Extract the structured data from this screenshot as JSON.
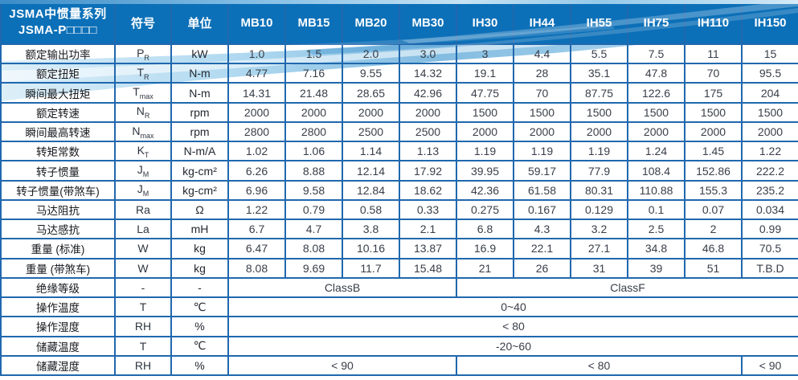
{
  "header": {
    "title_line1": "JSMA中惯量系列",
    "title_line2": "JSMA-P□□□□",
    "symbol_col": "符号",
    "unit_col": "单位",
    "models": [
      "MB10",
      "MB15",
      "MB20",
      "MB30",
      "IH30",
      "IH44",
      "IH55",
      "IH75",
      "IH110",
      "IH150"
    ]
  },
  "rows": [
    {
      "label": "额定输出功率",
      "sym": "P",
      "sub": "R",
      "unit": "kW",
      "values": [
        "1.0",
        "1.5",
        "2.0",
        "3.0",
        "3",
        "4.4",
        "5.5",
        "7.5",
        "11",
        "15"
      ]
    },
    {
      "label": "额定扭矩",
      "sym": "T",
      "sub": "R",
      "unit": "N-m",
      "values": [
        "4.77",
        "7.16",
        "9.55",
        "14.32",
        "19.1",
        "28",
        "35.1",
        "47.8",
        "70",
        "95.5"
      ]
    },
    {
      "label": "瞬间最大扭矩",
      "sym": "T",
      "sub": "max",
      "unit": "N-m",
      "values": [
        "14.31",
        "21.48",
        "28.65",
        "42.96",
        "47.75",
        "70",
        "87.75",
        "122.6",
        "175",
        "204"
      ]
    },
    {
      "label": "额定转速",
      "sym": "N",
      "sub": "R",
      "unit": "rpm",
      "values": [
        "2000",
        "2000",
        "2000",
        "2000",
        "1500",
        "1500",
        "1500",
        "1500",
        "1500",
        "1500"
      ]
    },
    {
      "label": "瞬间最高转速",
      "sym": "N",
      "sub": "max",
      "unit": "rpm",
      "values": [
        "2800",
        "2800",
        "2500",
        "2500",
        "2000",
        "2000",
        "2000",
        "2000",
        "2000",
        "2000"
      ]
    },
    {
      "label": "转矩常数",
      "sym": "K",
      "sub": "T",
      "unit": "N-m/A",
      "values": [
        "1.02",
        "1.06",
        "1.14",
        "1.13",
        "1.19",
        "1.19",
        "1.19",
        "1.24",
        "1.45",
        "1.22"
      ]
    },
    {
      "label": "转子惯量",
      "sym": "J",
      "sub": "M",
      "unit": "kg-cm²",
      "values": [
        "6.26",
        "8.88",
        "12.14",
        "17.92",
        "39.95",
        "59.17",
        "77.9",
        "108.4",
        "152.86",
        "222.2"
      ]
    },
    {
      "label": "转子惯量(带煞车)",
      "sym": "J",
      "sub": "M",
      "unit": "kg-cm²",
      "values": [
        "6.96",
        "9.58",
        "12.84",
        "18.62",
        "42.36",
        "61.58",
        "80.31",
        "110.88",
        "155.3",
        "235.2"
      ]
    },
    {
      "label": "马达阻抗",
      "sym": "Ra",
      "sub": "",
      "unit": "Ω",
      "values": [
        "1.22",
        "0.79",
        "0.58",
        "0.33",
        "0.275",
        "0.167",
        "0.129",
        "0.1",
        "0.07",
        "0.034"
      ]
    },
    {
      "label": "马达感抗",
      "sym": "La",
      "sub": "",
      "unit": "mH",
      "values": [
        "6.7",
        "4.7",
        "3.8",
        "2.1",
        "6.8",
        "4.3",
        "3.2",
        "2.5",
        "2",
        "0.99"
      ]
    },
    {
      "label": "重量 (标准)",
      "sym": "W",
      "sub": "",
      "unit": "kg",
      "values": [
        "6.47",
        "8.08",
        "10.16",
        "13.87",
        "16.9",
        "22.1",
        "27.1",
        "34.8",
        "46.8",
        "70.5"
      ]
    },
    {
      "label": "重量 (带煞车)",
      "sym": "W",
      "sub": "",
      "unit": "kg",
      "values": [
        "8.08",
        "9.69",
        "11.7",
        "15.48",
        "21",
        "26",
        "31",
        "39",
        "51",
        "T.B.D"
      ]
    },
    {
      "label": "绝缘等级",
      "sym": "-",
      "sub": "",
      "unit": "-",
      "spans": [
        {
          "text": "ClassB",
          "cols": 4
        },
        {
          "text": "ClassF",
          "cols": 6
        }
      ]
    },
    {
      "label": "操作温度",
      "sym": "T",
      "sub": "",
      "unit": "℃",
      "spans": [
        {
          "text": "0~40",
          "cols": 10
        }
      ]
    },
    {
      "label": "操作湿度",
      "sym": "RH",
      "sub": "",
      "unit": "%",
      "spans": [
        {
          "text": "< 80",
          "cols": 10
        }
      ]
    },
    {
      "label": "储藏温度",
      "sym": "T",
      "sub": "",
      "unit": "℃",
      "spans": [
        {
          "text": "-20~60",
          "cols": 10
        }
      ]
    },
    {
      "label": "储藏湿度",
      "sym": "RH",
      "sub": "",
      "unit": "%",
      "spans": [
        {
          "text": "< 90",
          "cols": 4
        },
        {
          "text": "< 80",
          "cols": 5
        },
        {
          "text": "< 90",
          "cols": 1
        }
      ]
    }
  ],
  "colors": {
    "header_bg": "#0c70b8",
    "header_border": "#0d539c",
    "body_border": "#2068ae",
    "swoosh_main": "#63abd9",
    "swoosh_light": "#cfe9f7",
    "value_text": "#383e48"
  }
}
